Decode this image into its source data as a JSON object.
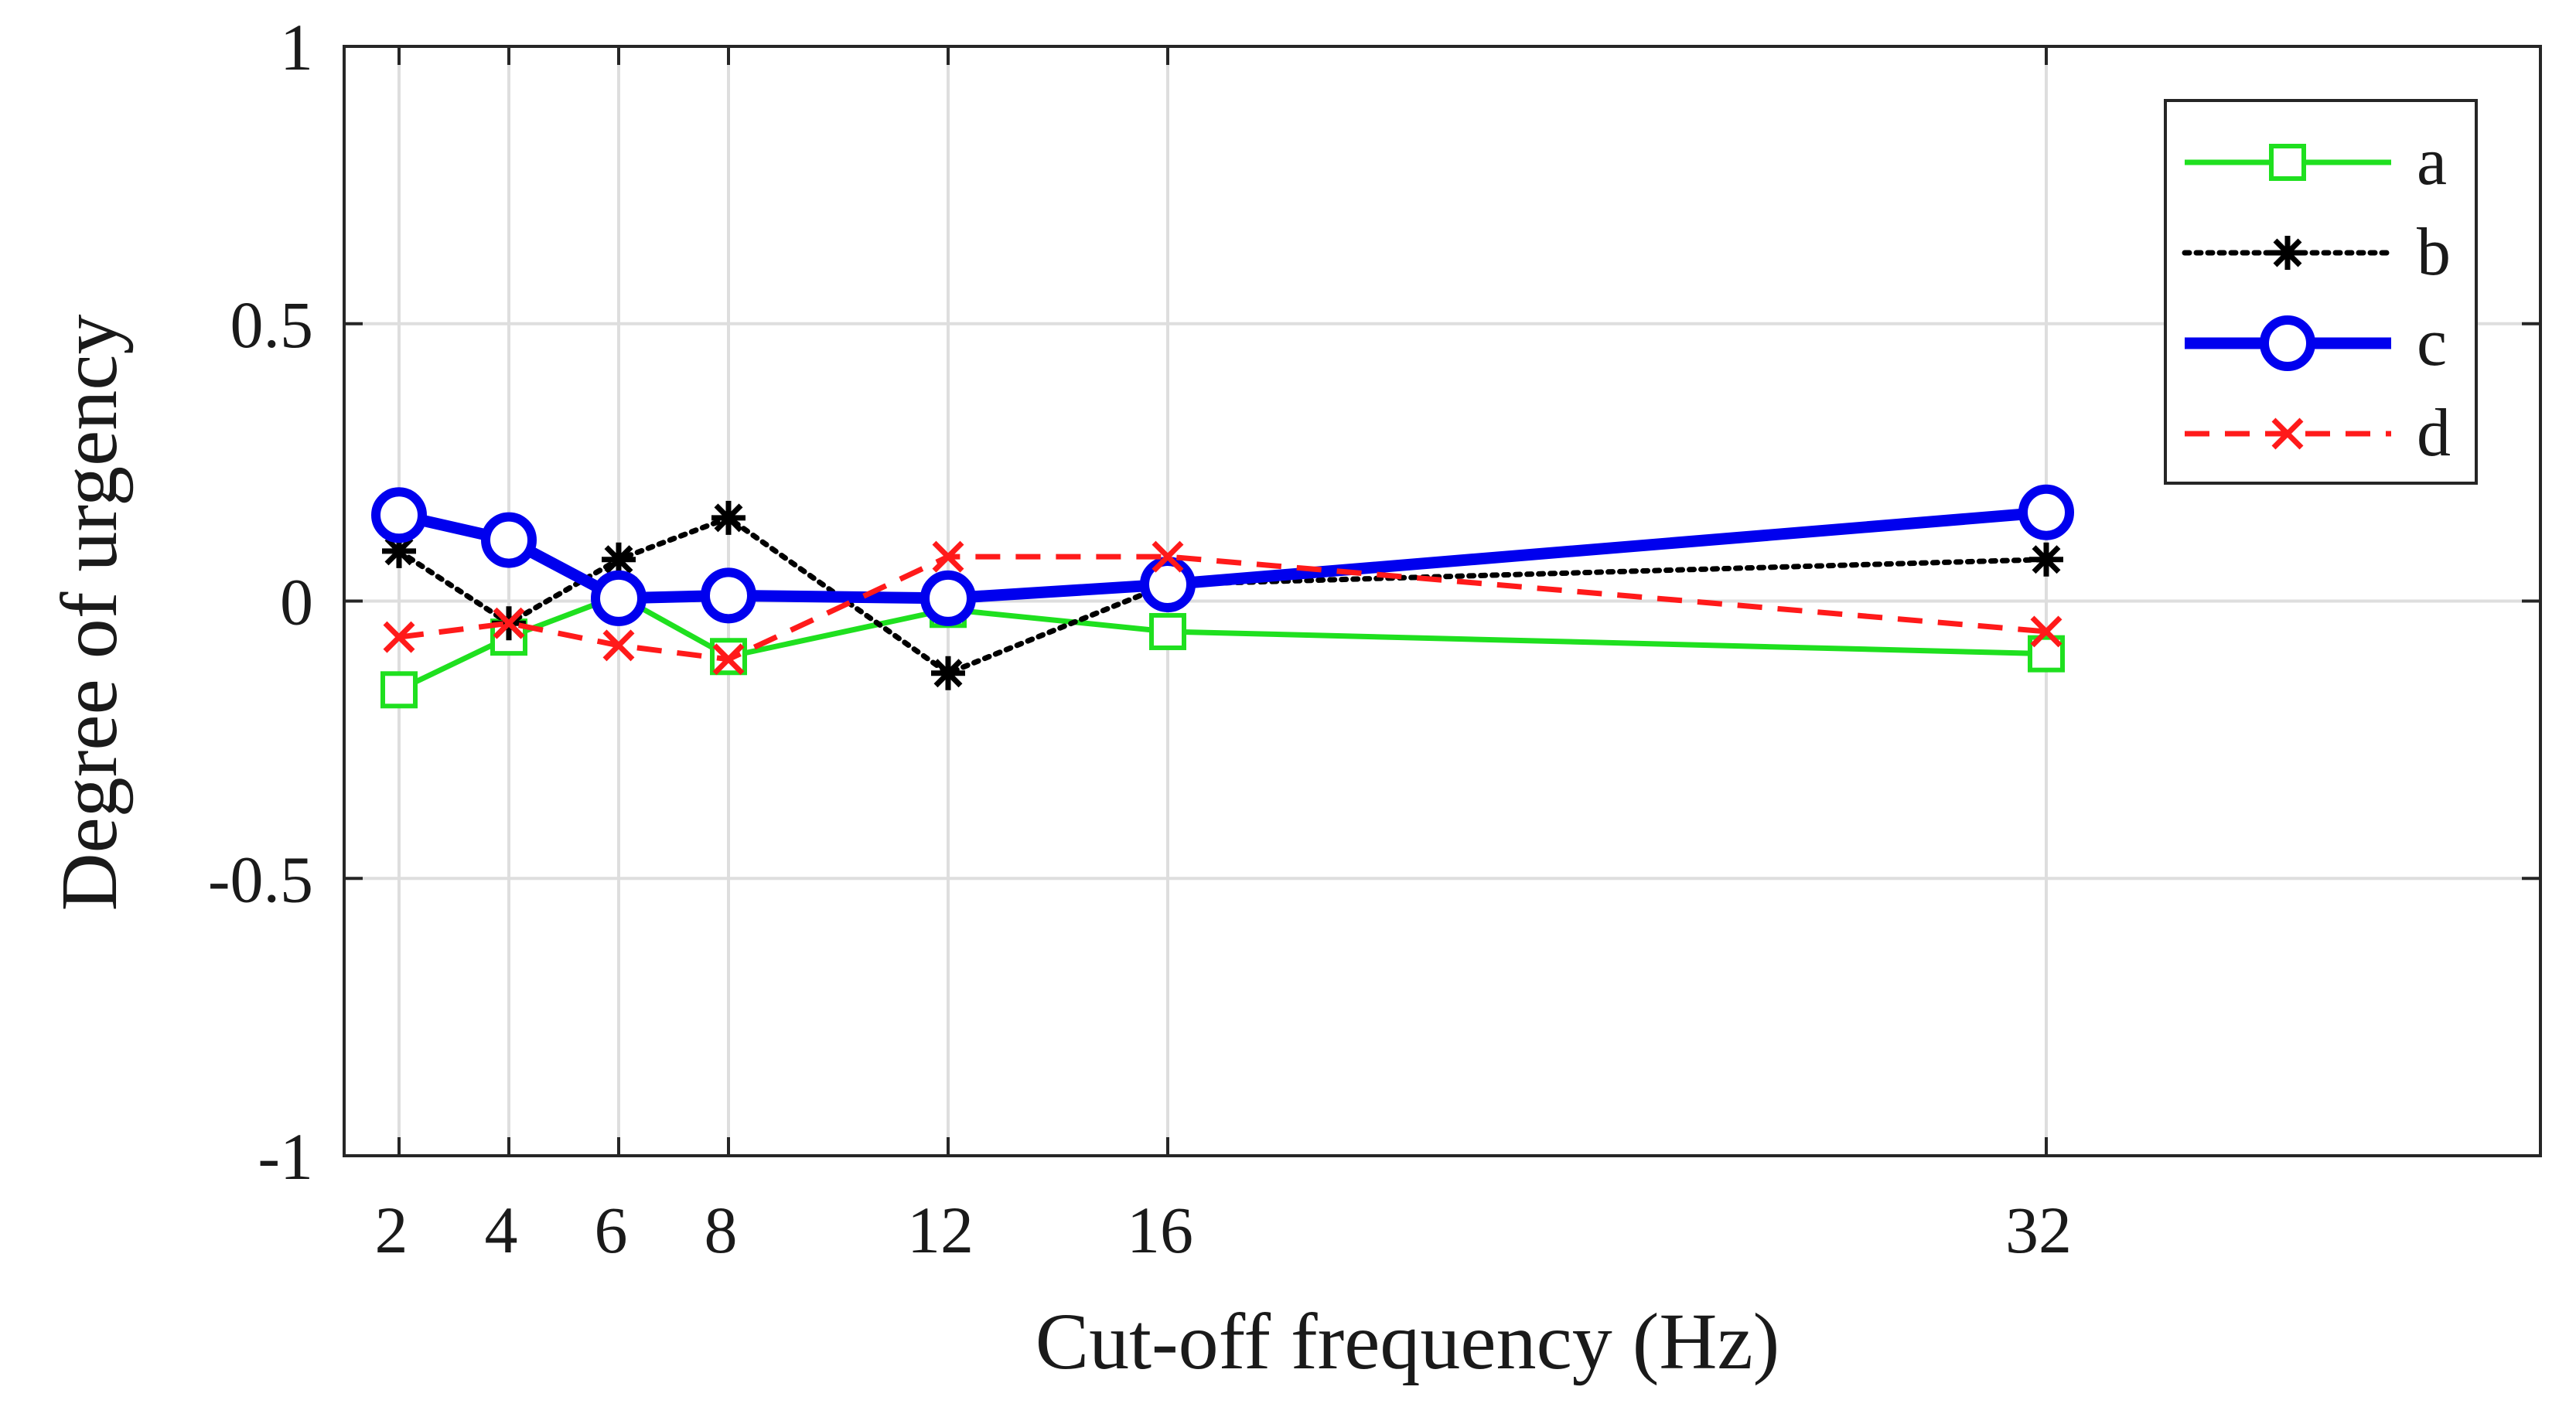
{
  "chart_data": {
    "type": "line",
    "title": "",
    "xlabel": "Cut-off frequency (Hz)",
    "ylabel": "Degree of urgency",
    "xlim": [
      1,
      41
    ],
    "ylim": [
      -1,
      1
    ],
    "x": [
      2,
      4,
      6,
      8,
      12,
      16,
      32
    ],
    "xticks": [
      2,
      4,
      6,
      8,
      12,
      16,
      32
    ],
    "xtick_labels": [
      "2",
      "4",
      "6",
      "8",
      "12",
      "16",
      "32"
    ],
    "yticks": [
      -1,
      -0.5,
      0,
      0.5,
      1
    ],
    "ytick_labels": [
      "-1",
      "-0.5",
      "0",
      "0.5",
      "1"
    ],
    "grid": true,
    "legend_position": "top-right",
    "series": [
      {
        "name": "a",
        "values": [
          -0.16,
          -0.065,
          0.01,
          -0.1,
          -0.015,
          -0.055,
          -0.095
        ],
        "color": "#1fe01f",
        "style": "solid",
        "marker": "square"
      },
      {
        "name": "b",
        "values": [
          0.09,
          -0.04,
          0.075,
          0.15,
          -0.13,
          0.03,
          0.075
        ],
        "color": "#000000",
        "style": "dotted",
        "marker": "asterisk"
      },
      {
        "name": "c",
        "values": [
          0.155,
          0.11,
          0.005,
          0.01,
          0.005,
          0.03,
          0.16
        ],
        "color": "#0000ee",
        "style": "solid-thick",
        "marker": "circle"
      },
      {
        "name": "d",
        "values": [
          -0.065,
          -0.04,
          -0.08,
          -0.105,
          0.08,
          0.08,
          -0.055
        ],
        "color": "#ff1a1a",
        "style": "dashed",
        "marker": "x"
      }
    ]
  }
}
